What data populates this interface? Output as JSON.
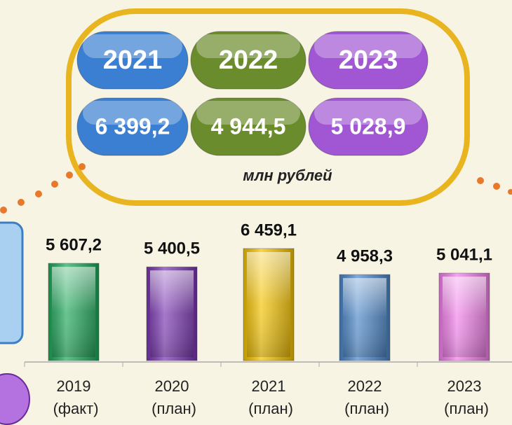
{
  "summary": {
    "items": [
      {
        "year": "2021",
        "value": "6 399,2",
        "color": "#3a7fd2"
      },
      {
        "year": "2022",
        "value": "4 944,5",
        "color": "#6b8c2c"
      },
      {
        "year": "2023",
        "value": "5 028,9",
        "color": "#a156d3"
      }
    ],
    "unit": "млн рублей"
  },
  "chart_data": {
    "type": "bar",
    "categories": [
      "2019 (факт)",
      "2020 (план)",
      "2021 (план)",
      "2022 (план)",
      "2023 (план)"
    ],
    "values": [
      5607.2,
      5400.5,
      6459.1,
      4958.3,
      5041.1
    ],
    "value_labels": [
      "5 607,2",
      "5 400,5",
      "6 459,1",
      "4 958,3",
      "5 041,1"
    ],
    "colors": [
      "#1fa85a",
      "#7a35b2",
      "#f5c300",
      "#4a86c8",
      "#f27fea"
    ]
  }
}
